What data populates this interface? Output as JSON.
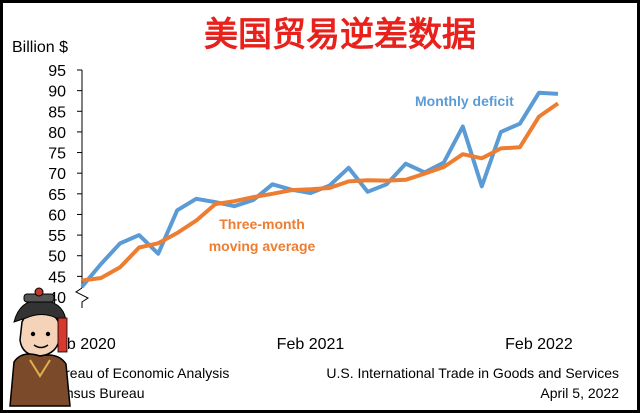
{
  "headline": "美国贸易逆差数据",
  "chart_data": {
    "type": "line",
    "title": "",
    "ylabel": "Billion $",
    "ylim": [
      40,
      95
    ],
    "yticks": [
      40,
      45,
      50,
      55,
      60,
      65,
      70,
      75,
      80,
      85,
      90,
      95
    ],
    "xtick_labels": [
      {
        "label": "Feb 2020",
        "index": 0
      },
      {
        "label": "Feb 2021",
        "index": 12
      },
      {
        "label": "Feb 2022",
        "index": 24
      }
    ],
    "axis_break": true,
    "grid": false,
    "series": [
      {
        "name": "Monthly deficit",
        "color": "#5b9bd5",
        "values": [
          42.5,
          48.0,
          53.0,
          55.0,
          50.5,
          61.0,
          63.8,
          63.0,
          62.0,
          63.5,
          67.3,
          66.0,
          65.2,
          67.0,
          71.3,
          65.5,
          67.3,
          72.3,
          70.2,
          72.6,
          81.3,
          66.8,
          80.0,
          82.0,
          89.5,
          89.2
        ]
      },
      {
        "name": "Three-month moving average",
        "label_lines": [
          "Three-month",
          "moving average"
        ],
        "color": "#ed7d31",
        "values": [
          44.0,
          44.6,
          47.2,
          52.0,
          53.0,
          55.5,
          58.5,
          62.5,
          63.2,
          64.2,
          65.0,
          65.9,
          66.1,
          66.4,
          68.0,
          68.3,
          68.2,
          68.4,
          69.9,
          71.5,
          74.6,
          73.6,
          76.0,
          76.3,
          83.7,
          86.9
        ]
      }
    ]
  },
  "footer": {
    "left": [
      "Bureau of Economic Analysis",
      "Census Bureau"
    ],
    "right": [
      "U.S. International Trade in Goods and Services",
      "April 5, 2022"
    ]
  }
}
